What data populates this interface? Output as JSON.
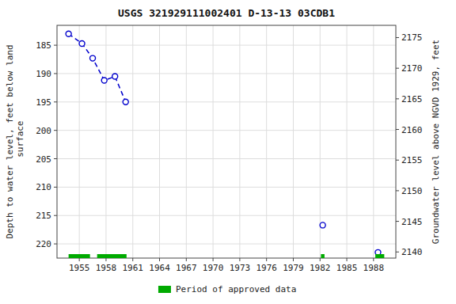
{
  "chart_data": {
    "type": "line",
    "title": "USGS 321929111002401 D-13-13 03CDB1",
    "y_label": "Depth to water level, feet below land\n surface",
    "y2_label": "Groundwater level above NGVD 1929, feet",
    "x": [
      1953.8,
      1955.3,
      1956.5,
      1957.8,
      1959.0,
      1960.2,
      1982.3,
      1988.5
    ],
    "series": [
      {
        "color": "#0000CC",
        "line_style": "dashed",
        "marker": "circle",
        "values": [
          183.0,
          184.7,
          187.3,
          191.2,
          190.5,
          195.0,
          null,
          null
        ]
      },
      {
        "type": "scatter",
        "color": "#0000CC",
        "marker": "circle",
        "values": [
          null,
          null,
          null,
          null,
          null,
          null,
          216.7,
          221.5
        ]
      }
    ],
    "bands": {
      "name": "Period of approved data",
      "color": "#00AA00",
      "ranges": [
        [
          1953.8,
          1956.2
        ],
        [
          1957.0,
          1960.3
        ],
        [
          1982.1,
          1982.5
        ],
        [
          1988.2,
          1989.2
        ]
      ]
    },
    "xlim": [
      1952.5,
      1990.5
    ],
    "xticks": [
      1955,
      1958,
      1961,
      1964,
      1967,
      1970,
      1973,
      1976,
      1979,
      1982,
      1985,
      1988
    ],
    "ylim": [
      222.5,
      181.5
    ],
    "yticks": [
      185,
      190,
      195,
      200,
      205,
      210,
      215,
      220
    ],
    "y2lim": [
      2139.0,
      2177.0
    ],
    "y2ticks": [
      2140,
      2145,
      2150,
      2155,
      2160,
      2165,
      2170,
      2175
    ],
    "grid": true,
    "legend": "bottom"
  }
}
